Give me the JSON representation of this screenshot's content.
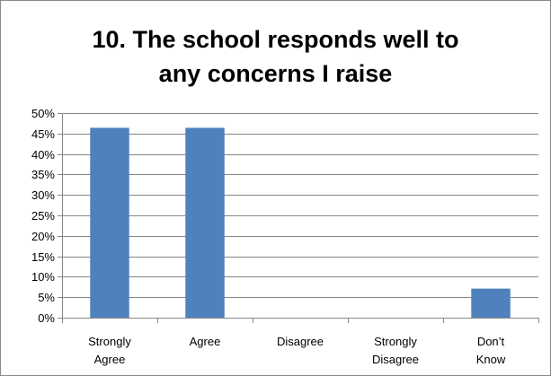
{
  "chart_data": {
    "type": "bar",
    "title": "10. The school responds  well to\nany concerns I raise",
    "categories": [
      "Strongly\nAgree",
      "Agree",
      "Disagree",
      "Strongly\nDisagree",
      "Don’t\nKnow"
    ],
    "series": [
      {
        "values": [
          46.4,
          46.4,
          0,
          0,
          7.1
        ]
      }
    ],
    "ylim": [
      0,
      50
    ],
    "yticks": [
      "0%",
      "5%",
      "10%",
      "15%",
      "20%",
      "25%",
      "30%",
      "35%",
      "40%",
      "45%",
      "50%"
    ],
    "ytick_step": 5,
    "grid": true,
    "legend": "none",
    "bar_color": "#4f81bd",
    "grid_color": "#878787",
    "axis_color": "#878787"
  }
}
